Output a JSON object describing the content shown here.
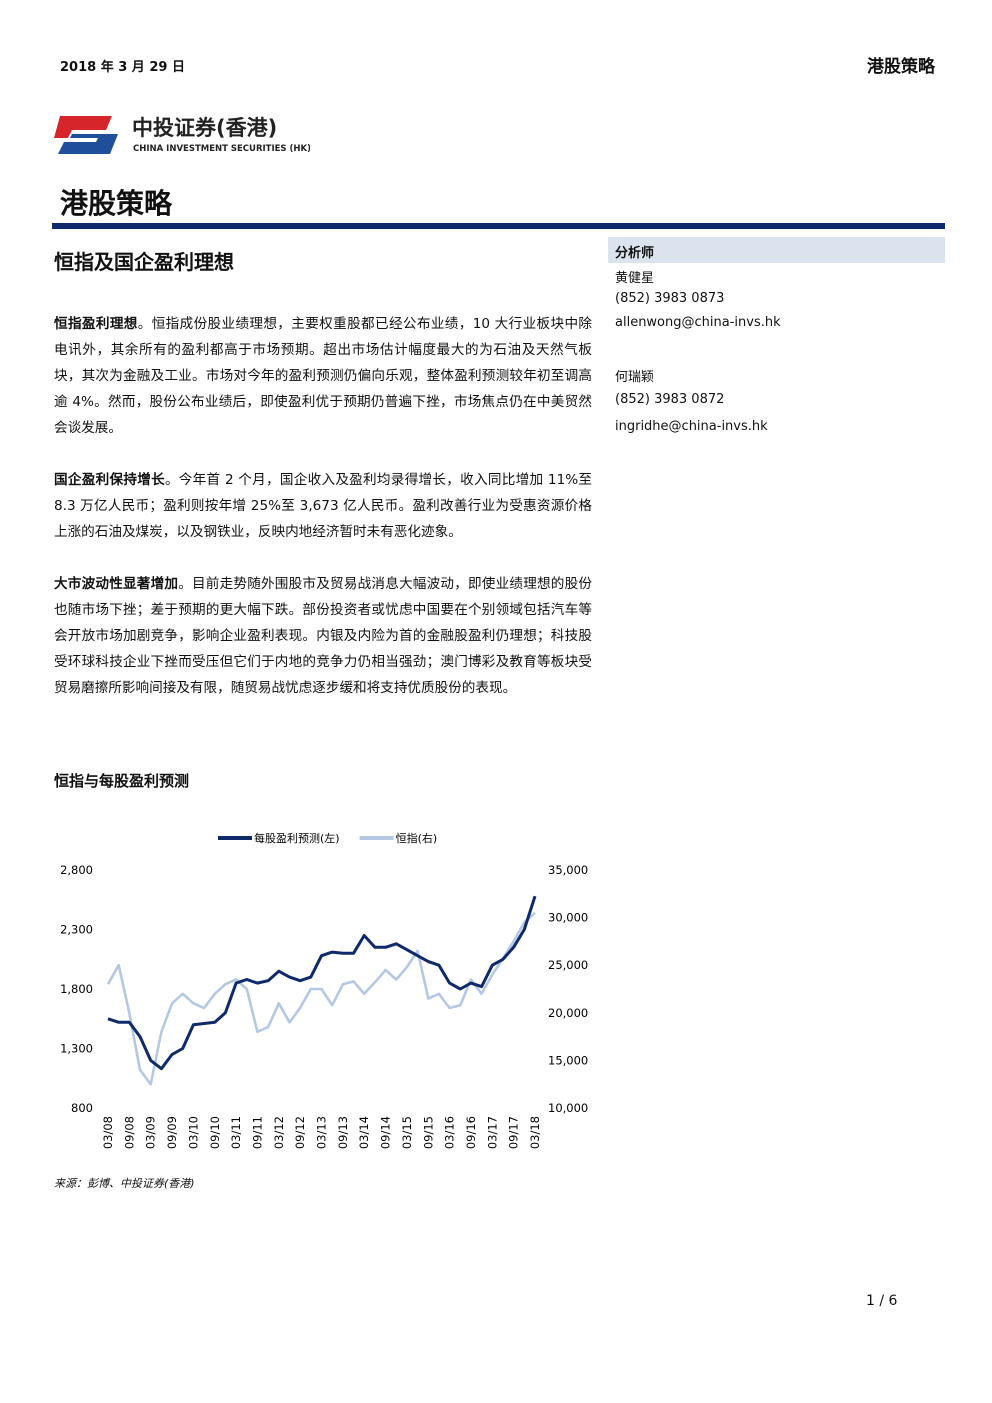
{
  "header": {
    "date": "2018 年 3 月 29 日",
    "section": "港股策略"
  },
  "logo": {
    "name": "中投证券(香港)",
    "english": "CHINA INVESTMENT SECURITIES (HK)"
  },
  "title": "港股策略",
  "subtitle": "恒指及国企盈利理想",
  "paragraphs": [
    {
      "lead": "恒指盈利理想",
      "text": "。恒指成份股业绩理想，主要权重股都已经公布业绩，10 大行业板块中除电讯外，其余所有的盈利都高于市场预期。超出市场估计幅度最大的为石油及天然气板块，其次为金融及工业。市场对今年的盈利预测仍偏向乐观，整体盈利预测较年初至调高逾 4%。然而，股份公布业绩后，即使盈利优于预期仍普遍下挫，市场焦点仍在中美贸然会谈发展。"
    },
    {
      "lead": "国企盈利保持增长",
      "text": "。今年首 2 个月，国企收入及盈利均录得增长，收入同比增加 11%至 8.3 万亿人民币；盈利则按年增 25%至 3,673 亿人民币。盈利改善行业为受惠资源价格上涨的石油及煤炭，以及钢铁业，反映内地经济暂时未有恶化迹象。"
    },
    {
      "lead": "大市波动性显著增加",
      "text": "。目前走势随外围股市及贸易战消息大幅波动，即使业绩理想的股份也随市场下挫；差于预期的更大幅下跌。部份投资者或忧虑中国要在个别领域包括汽车等会开放市场加剧竞争，影响企业盈利表现。内银及内险为首的金融股盈利仍理想；科技股受环球科技企业下挫而受压但它们于内地的竞争力仍相当强劲；澳门博彩及教育等板块受贸易磨擦所影响间接及有限，随贸易战忧虑逐步缓和将支持优质股份的表现。"
    }
  ],
  "sidebar": {
    "heading": "分析师",
    "analysts": [
      {
        "name": "黄健星",
        "phone": "(852) 3983 0873",
        "email": "allenwong@china-invs.hk"
      },
      {
        "name": "何瑞颖",
        "phone": "(852) 3983 0872",
        "email": "ingridhe@china-invs.hk"
      }
    ]
  },
  "chart_data": {
    "type": "line",
    "title": "恒指与每股盈利预测",
    "legend": "top",
    "categories": [
      "03/08",
      null,
      "09/08",
      null,
      "03/09",
      null,
      "09/09",
      null,
      "03/10",
      null,
      "09/10",
      null,
      "03/11",
      null,
      "09/11",
      null,
      "03/12",
      null,
      "09/12",
      null,
      "03/13",
      null,
      "09/13",
      null,
      "03/14",
      null,
      "09/14",
      null,
      "03/15",
      null,
      "09/15",
      null,
      "03/16",
      null,
      "09/16",
      null,
      "03/17",
      null,
      "09/17",
      null,
      "03/18"
    ],
    "series": [
      {
        "name": "每股盈利预测(左)",
        "color": "#0e2a6b",
        "axis": "y",
        "values": [
          1550,
          1520,
          1520,
          1400,
          1200,
          1130,
          1250,
          1300,
          1500,
          1510,
          1520,
          1600,
          1850,
          1880,
          1850,
          1870,
          1950,
          1900,
          1870,
          1900,
          2080,
          2110,
          2100,
          2100,
          2250,
          2150,
          2150,
          2180,
          2130,
          2080,
          2030,
          2000,
          1850,
          1800,
          1850,
          1820,
          2000,
          2050,
          2150,
          2300,
          2580
        ]
      },
      {
        "name": "恒指(右)",
        "color": "#b4c8e4",
        "axis": "y2",
        "values": [
          23000,
          25000,
          20000,
          14000,
          12500,
          18000,
          21000,
          22000,
          21000,
          20500,
          22000,
          23000,
          23500,
          22500,
          18000,
          18500,
          21000,
          19000,
          20500,
          22500,
          22500,
          20800,
          23000,
          23300,
          22000,
          23200,
          24500,
          23500,
          24800,
          26500,
          21500,
          22000,
          20500,
          20800,
          23500,
          22000,
          24000,
          25700,
          27500,
          29500,
          30500
        ]
      }
    ],
    "ylim": [
      800,
      2800
    ],
    "yticks": [
      800,
      {
        "value": 1300,
        "label": "1,300"
      },
      {
        "value": 1800,
        "label": "1,800"
      },
      {
        "value": 2300,
        "label": "2,300"
      },
      {
        "value": 2800,
        "label": "2,800"
      }
    ],
    "y2lim": [
      10000,
      35000
    ],
    "y2ticks": [
      {
        "value": 10000,
        "label": "10,000"
      },
      {
        "value": 15000,
        "label": "15,000"
      },
      {
        "value": 20000,
        "label": "20,000"
      },
      {
        "value": 25000,
        "label": "25,000"
      },
      {
        "value": 30000,
        "label": "30,000"
      },
      {
        "value": 35000,
        "label": "35,000"
      }
    ],
    "source": "来源：彭博、中投证券(香港)"
  },
  "page_number": "1 / 6"
}
